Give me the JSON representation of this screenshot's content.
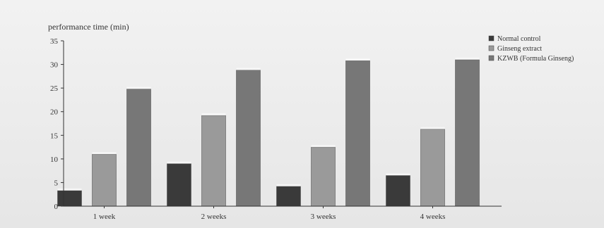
{
  "chart_data": {
    "type": "bar",
    "ylabel": "performance time (min)",
    "xlabel": "",
    "categories": [
      "1 week",
      "2 weeks",
      "3 weeks",
      "4 weeks"
    ],
    "series": [
      {
        "name": "Normal control",
        "color": "#3a3a3a",
        "values": [
          3.3,
          9.0,
          4.2,
          6.5
        ]
      },
      {
        "name": "Ginseng extract",
        "color": "#9a9a9a",
        "values": [
          11.0,
          19.2,
          12.5,
          16.3
        ]
      },
      {
        "name": "KZWB (Formula Ginseng)",
        "color": "#777777",
        "values": [
          24.8,
          28.8,
          30.8,
          31.0
        ]
      }
    ],
    "ylim": [
      0,
      35
    ],
    "yticks": [
      0,
      5,
      10,
      15,
      20,
      25,
      30,
      35
    ],
    "grid": false,
    "legend_position": "top-right"
  }
}
